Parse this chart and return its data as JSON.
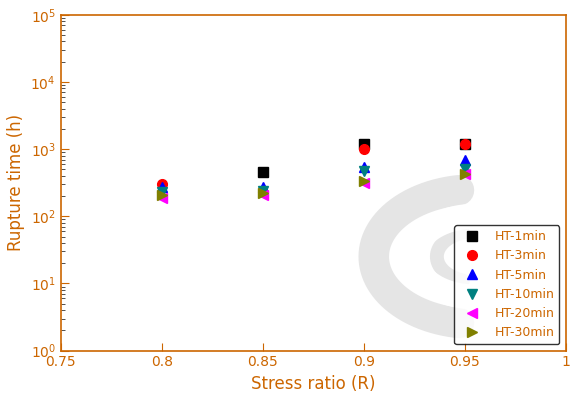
{
  "title": "",
  "xlabel": "Stress ratio (R)",
  "ylabel": "Rupture time (h)",
  "xlim": [
    0.75,
    1.0
  ],
  "ylim": [
    1,
    100000
  ],
  "xticks": [
    0.75,
    0.8,
    0.85,
    0.9,
    0.95,
    1.0
  ],
  "x_values": [
    0.8,
    0.85,
    0.9,
    0.95
  ],
  "series": [
    {
      "label": "HT-1min",
      "color": "black",
      "marker": "s",
      "markersize": 7,
      "y_values": [
        null,
        450,
        1200,
        1200
      ]
    },
    {
      "label": "HT-3min",
      "color": "red",
      "marker": "o",
      "markersize": 7,
      "y_values": [
        300,
        null,
        1000,
        1200
      ]
    },
    {
      "label": "HT-5min",
      "color": "blue",
      "marker": "^",
      "markersize": 7,
      "y_values": [
        270,
        270,
        550,
        700
      ]
    },
    {
      "label": "HT-10min",
      "color": "#008080",
      "marker": "v",
      "markersize": 7,
      "y_values": [
        230,
        240,
        480,
        500
      ]
    },
    {
      "label": "HT-20min",
      "color": "magenta",
      "marker": "<",
      "markersize": 7,
      "y_values": [
        190,
        210,
        310,
        430
      ]
    },
    {
      "label": "HT-30min",
      "color": "#808000",
      "marker": ">",
      "markersize": 7,
      "y_values": [
        210,
        220,
        340,
        430
      ]
    }
  ],
  "label_color": "#cc6600",
  "tick_color": "#333333",
  "spine_color": "#cc6600",
  "legend_fontsize": 9,
  "background_color": "#ffffff",
  "watermark_color": "#cccccc",
  "watermark_alpha": 0.5
}
